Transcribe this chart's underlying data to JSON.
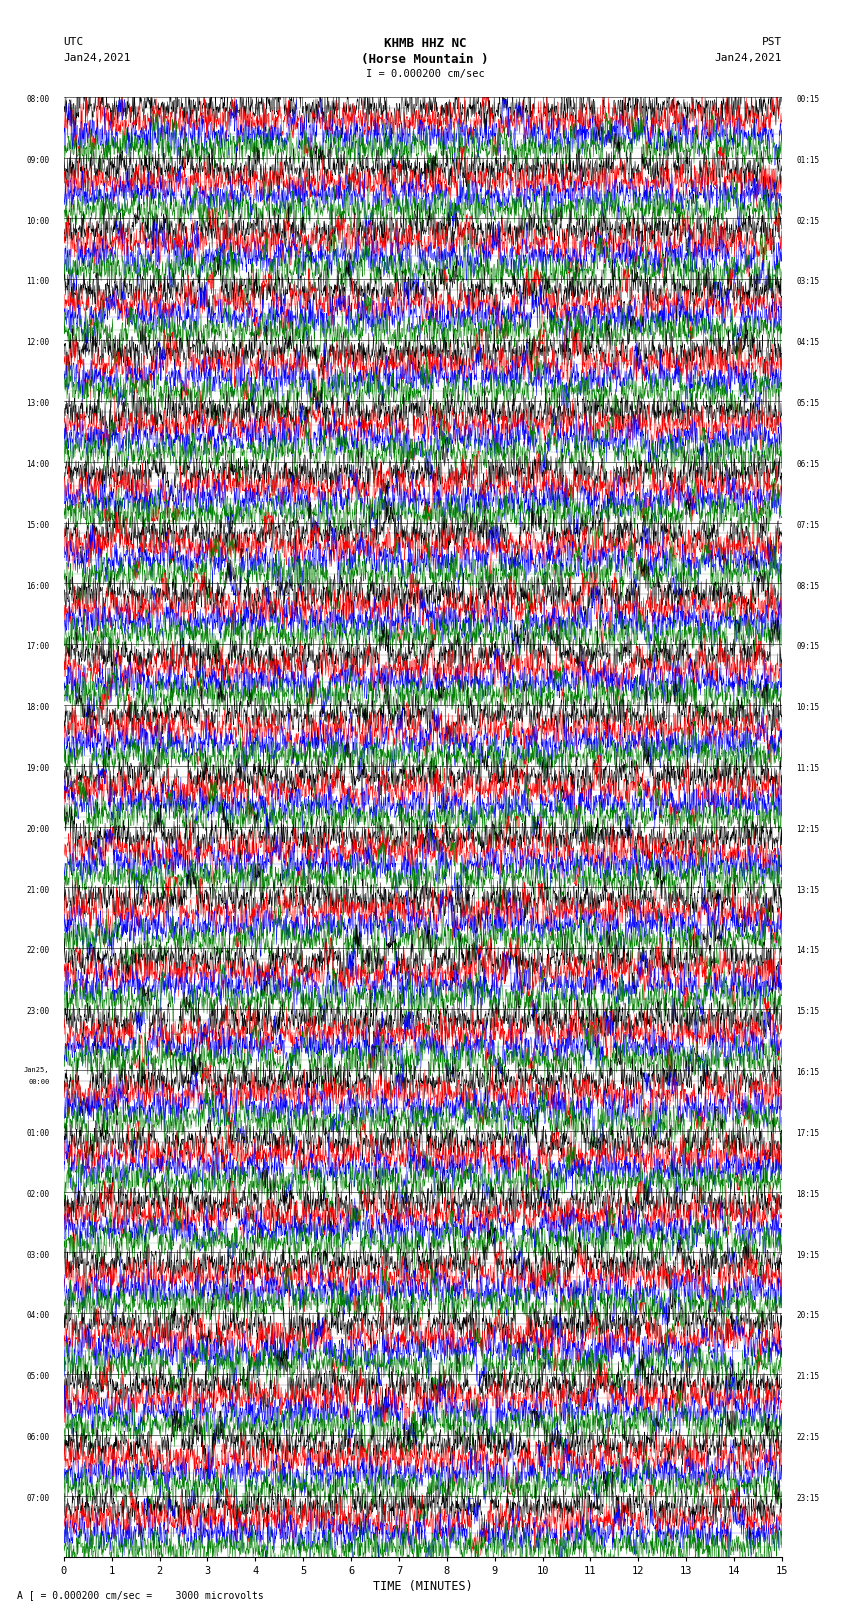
{
  "title_line1": "KHMB HHZ NC",
  "title_line2": "(Horse Mountain )",
  "scale_label": "I = 0.000200 cm/sec",
  "left_date": "Jan24,2021",
  "right_date": "Jan24,2021",
  "utc_label": "UTC",
  "pst_label": "PST",
  "xlabel": "TIME (MINUTES)",
  "bottom_note": "A [ = 0.000200 cm/sec =    3000 microvolts",
  "left_times": [
    "08:00",
    "09:00",
    "10:00",
    "11:00",
    "12:00",
    "13:00",
    "14:00",
    "15:00",
    "16:00",
    "17:00",
    "18:00",
    "19:00",
    "20:00",
    "21:00",
    "22:00",
    "23:00",
    "Jan25,\n00:00",
    "01:00",
    "02:00",
    "03:00",
    "04:00",
    "05:00",
    "06:00",
    "07:00"
  ],
  "right_times": [
    "00:15",
    "01:15",
    "02:15",
    "03:15",
    "04:15",
    "05:15",
    "06:15",
    "07:15",
    "08:15",
    "09:15",
    "10:15",
    "11:15",
    "12:15",
    "13:15",
    "14:15",
    "15:15",
    "16:15",
    "17:15",
    "18:15",
    "19:15",
    "20:15",
    "21:15",
    "22:15",
    "23:15"
  ],
  "n_rows": 24,
  "traces_per_row": 4,
  "colors": [
    "black",
    "red",
    "blue",
    "green"
  ],
  "xlim": [
    0,
    15
  ],
  "xticks": [
    0,
    1,
    2,
    3,
    4,
    5,
    6,
    7,
    8,
    9,
    10,
    11,
    12,
    13,
    14,
    15
  ],
  "background_color": "white",
  "line_width": 0.35,
  "noise_seed": 42
}
